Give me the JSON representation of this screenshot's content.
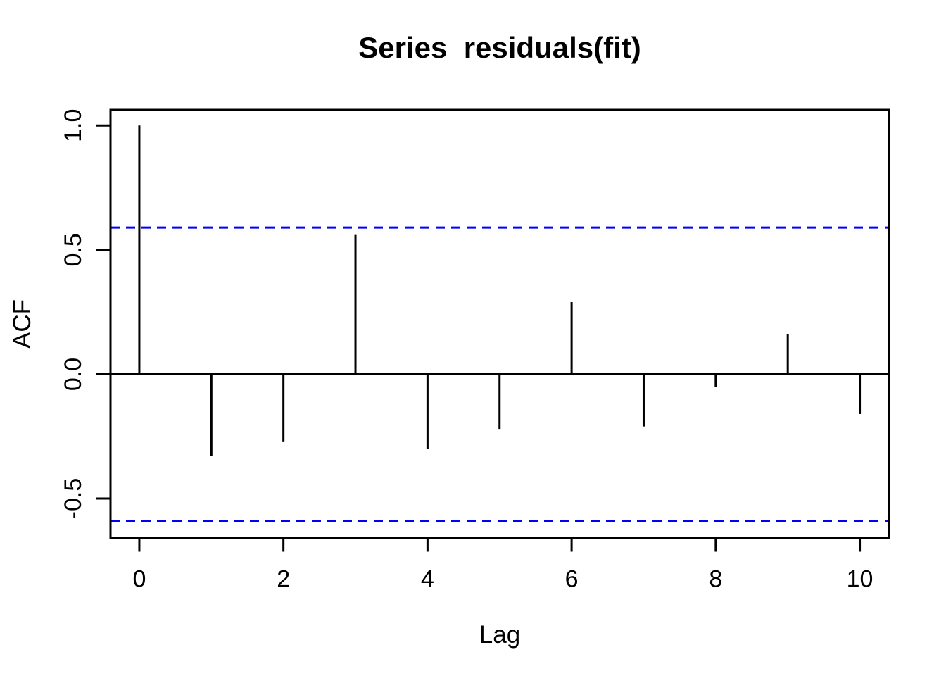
{
  "chart_data": {
    "type": "bar",
    "subtype": "acf-stem-plot",
    "title": "Series  residuals(fit)",
    "xlabel": "Lag",
    "ylabel": "ACF",
    "x": [
      0,
      1,
      2,
      3,
      4,
      5,
      6,
      7,
      8,
      9,
      10
    ],
    "values": [
      1.0,
      -0.33,
      -0.27,
      0.56,
      -0.3,
      -0.22,
      0.29,
      -0.21,
      -0.05,
      0.16,
      -0.16
    ],
    "confidence_bounds": {
      "upper": 0.59,
      "lower": -0.59,
      "line_style": "dashed",
      "color": "#0000FF"
    },
    "xlim": [
      -0.4,
      10.4
    ],
    "ylim": [
      -0.657,
      1.063
    ],
    "xticks": [
      0,
      2,
      4,
      6,
      8,
      10
    ],
    "xtick_labels": [
      "0",
      "2",
      "4",
      "6",
      "8",
      "10"
    ],
    "yticks": [
      -0.5,
      0.0,
      0.5,
      1.0
    ],
    "ytick_labels": [
      "-0.5",
      "0.0",
      "0.5",
      "1.0"
    ],
    "grid": false,
    "legend": null,
    "zero_line": true,
    "colors": {
      "stem": "#000000",
      "axis": "#000000",
      "text": "#000000",
      "background": "#FFFFFF",
      "ci_line": "#0000FF"
    }
  }
}
